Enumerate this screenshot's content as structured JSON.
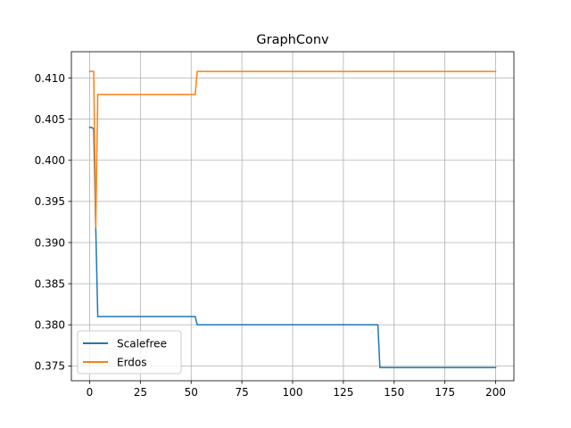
{
  "chart_data": {
    "type": "line",
    "title": "GraphConv",
    "xlabel": "",
    "ylabel": "",
    "xlim": [
      -9,
      209
    ],
    "ylim": [
      0.3732,
      0.4132
    ],
    "x_ticks": [
      0,
      25,
      50,
      75,
      100,
      125,
      150,
      175,
      200
    ],
    "y_ticks": [
      0.375,
      0.38,
      0.385,
      0.39,
      0.395,
      0.4,
      0.405,
      0.41
    ],
    "x_tick_labels": [
      "0",
      "25",
      "50",
      "75",
      "100",
      "125",
      "150",
      "175",
      "200"
    ],
    "y_tick_labels": [
      "0.375",
      "0.380",
      "0.385",
      "0.390",
      "0.395",
      "0.400",
      "0.405",
      "0.410"
    ],
    "grid": true,
    "legend_position": "lower-left",
    "series": [
      {
        "name": "Scalefree",
        "color": "#1f77b4",
        "points": [
          [
            0,
            0.404
          ],
          [
            1,
            0.404
          ],
          [
            2,
            0.4038
          ],
          [
            3,
            0.392
          ],
          [
            4,
            0.381
          ],
          [
            51,
            0.381
          ],
          [
            52,
            0.381
          ],
          [
            53,
            0.38
          ],
          [
            142,
            0.38
          ],
          [
            143,
            0.3748
          ],
          [
            200,
            0.3748
          ]
        ]
      },
      {
        "name": "Erdos",
        "color": "#ff7f0e",
        "points": [
          [
            0,
            0.4108
          ],
          [
            1,
            0.4108
          ],
          [
            2,
            0.4108
          ],
          [
            3,
            0.3918
          ],
          [
            4,
            0.408
          ],
          [
            51,
            0.408
          ],
          [
            52,
            0.408
          ],
          [
            53,
            0.4108
          ],
          [
            200,
            0.4108
          ]
        ]
      }
    ]
  }
}
